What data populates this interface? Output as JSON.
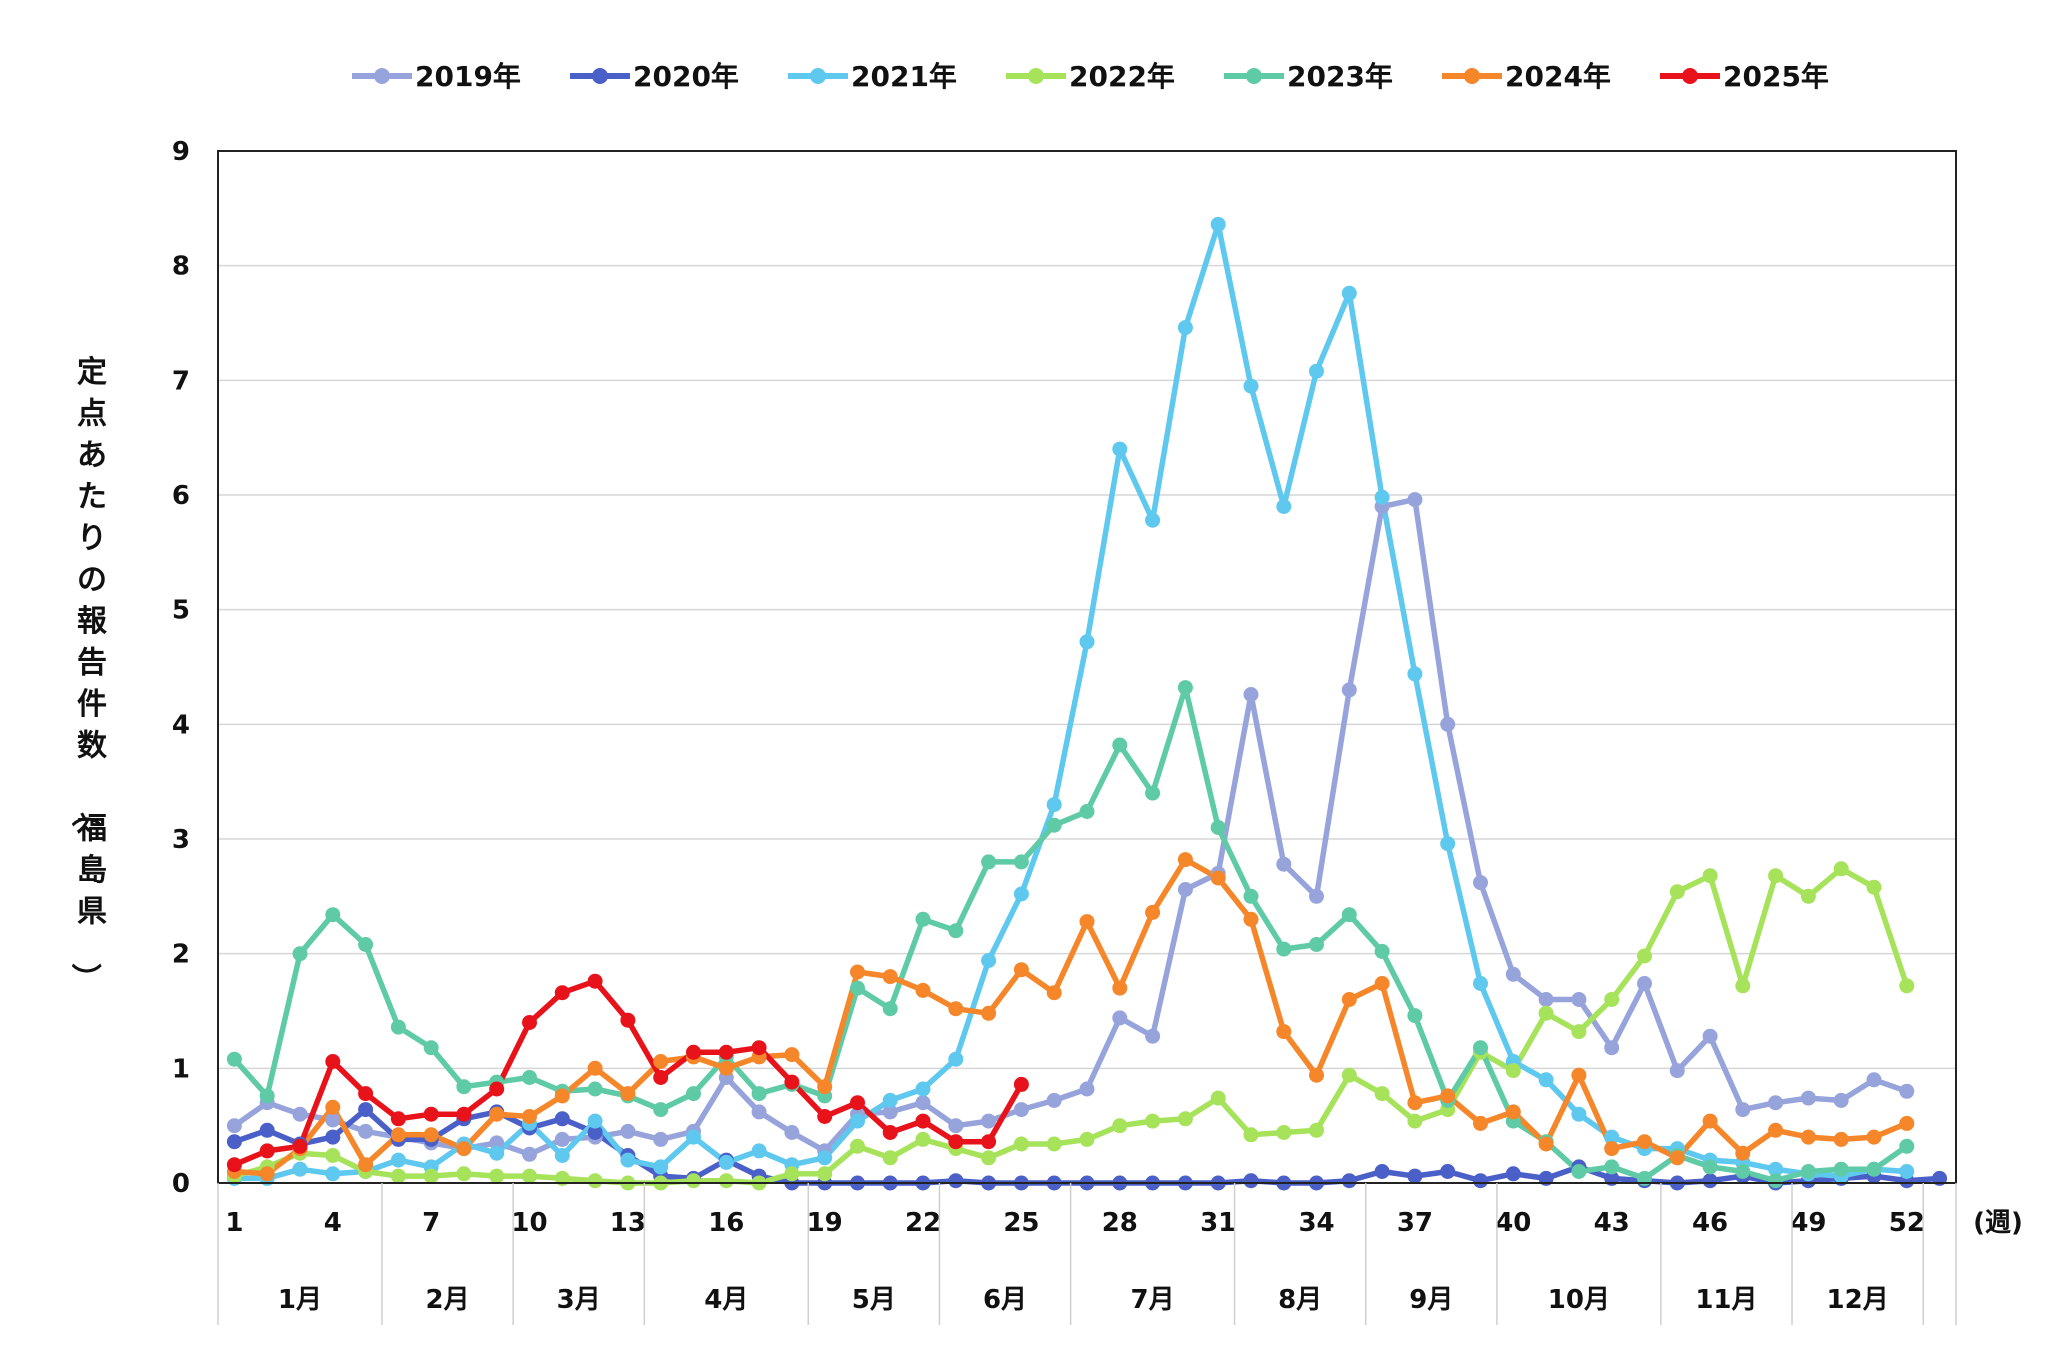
{
  "chart_data": {
    "type": "line",
    "ylabel": "定点あたりの報告件数（福島県）",
    "xunit": "(週)",
    "ylim": [
      0,
      9
    ],
    "yticks": [
      "0",
      "1",
      "2",
      "3",
      "4",
      "5",
      "6",
      "7",
      "8",
      "9"
    ],
    "xticks": [
      "1",
      "4",
      "7",
      "10",
      "13",
      "16",
      "19",
      "22",
      "25",
      "28",
      "31",
      "34",
      "37",
      "40",
      "43",
      "46",
      "49",
      "52"
    ],
    "months": [
      {
        "label": "1月",
        "start": 0.5,
        "end": 5.5
      },
      {
        "label": "2月",
        "start": 5.5,
        "end": 9.5
      },
      {
        "label": "3月",
        "start": 9.5,
        "end": 13.5
      },
      {
        "label": "4月",
        "start": 13.5,
        "end": 18.5
      },
      {
        "label": "5月",
        "start": 18.5,
        "end": 22.5
      },
      {
        "label": "6月",
        "start": 22.5,
        "end": 26.5
      },
      {
        "label": "7月",
        "start": 26.5,
        "end": 31.5
      },
      {
        "label": "8月",
        "start": 31.5,
        "end": 35.5
      },
      {
        "label": "9月",
        "start": 35.5,
        "end": 39.5
      },
      {
        "label": "10月",
        "start": 39.5,
        "end": 44.5
      },
      {
        "label": "11月",
        "start": 44.5,
        "end": 48.5
      },
      {
        "label": "12月",
        "start": 48.5,
        "end": 52.5
      }
    ],
    "grid": true,
    "legend_position": "top",
    "series": [
      {
        "name": "2019年",
        "color": "#97a4dc",
        "values": [
          0.5,
          0.7,
          0.6,
          0.55,
          0.45,
          0.4,
          0.35,
          0.3,
          0.35,
          0.25,
          0.38,
          0.4,
          0.45,
          0.38,
          0.45,
          0.92,
          0.62,
          0.44,
          0.28,
          0.6,
          0.62,
          0.7,
          0.5,
          0.54,
          0.64,
          0.72,
          0.82,
          1.44,
          1.28,
          2.56,
          2.7,
          4.26,
          2.78,
          2.5,
          4.3,
          5.9,
          5.96,
          4.0,
          2.62,
          1.82,
          1.6,
          1.6,
          1.18,
          1.74,
          0.98,
          1.28,
          0.64,
          0.7,
          0.74,
          0.72,
          0.9,
          0.8
        ]
      },
      {
        "name": "2020年",
        "color": "#4a5fc8",
        "values": [
          0.36,
          0.46,
          0.34,
          0.4,
          0.64,
          0.38,
          0.38,
          0.56,
          0.62,
          0.48,
          0.56,
          0.44,
          0.24,
          0.06,
          0.04,
          0.2,
          0.06,
          0.0,
          0.0,
          0.0,
          0.0,
          0.0,
          0.02,
          0.0,
          0.0,
          0.0,
          0.0,
          0.0,
          0.0,
          0.0,
          0.0,
          0.02,
          0.0,
          0.0,
          0.02,
          0.1,
          0.06,
          0.1,
          0.02,
          0.08,
          0.04,
          0.14,
          0.04,
          0.02,
          0.0,
          0.02,
          0.06,
          0.0,
          0.02,
          0.04,
          0.06,
          0.02,
          0.04
        ]
      },
      {
        "name": "2021年",
        "color": "#5ec8ee",
        "values": [
          0.04,
          0.04,
          0.12,
          0.08,
          0.1,
          0.2,
          0.14,
          0.34,
          0.26,
          0.52,
          0.24,
          0.54,
          0.2,
          0.14,
          0.4,
          0.18,
          0.28,
          0.16,
          0.22,
          0.54,
          0.72,
          0.82,
          1.08,
          1.94,
          2.52,
          3.3,
          4.72,
          6.4,
          5.78,
          7.46,
          8.36,
          6.95,
          5.9,
          7.08,
          7.76,
          5.98,
          4.44,
          2.96,
          1.74,
          1.06,
          0.9,
          0.6,
          0.4,
          0.3,
          0.3,
          0.2,
          0.18,
          0.12,
          0.08,
          0.06,
          0.12,
          0.1
        ]
      },
      {
        "name": "2022年",
        "color": "#a6e25a",
        "values": [
          0.06,
          0.14,
          0.26,
          0.24,
          0.1,
          0.06,
          0.06,
          0.08,
          0.06,
          0.06,
          0.04,
          0.02,
          0.0,
          0.0,
          0.02,
          0.02,
          0.0,
          0.08,
          0.08,
          0.32,
          0.22,
          0.38,
          0.3,
          0.22,
          0.34,
          0.34,
          0.38,
          0.5,
          0.54,
          0.56,
          0.74,
          0.42,
          0.44,
          0.46,
          0.94,
          0.78,
          0.54,
          0.64,
          1.14,
          0.98,
          1.48,
          1.32,
          1.6,
          1.98,
          2.54,
          2.68,
          1.72,
          2.68,
          2.5,
          2.74,
          2.58,
          1.72
        ]
      },
      {
        "name": "2023年",
        "color": "#5fcaa6",
        "values": [
          1.08,
          0.76,
          2.0,
          2.34,
          2.08,
          1.36,
          1.18,
          0.84,
          0.88,
          0.92,
          0.8,
          0.82,
          0.76,
          0.64,
          0.78,
          1.1,
          0.78,
          0.86,
          0.76,
          1.7,
          1.52,
          2.3,
          2.2,
          2.8,
          2.8,
          3.12,
          3.24,
          3.82,
          3.4,
          4.32,
          3.1,
          2.5,
          2.04,
          2.08,
          2.34,
          2.02,
          1.46,
          0.72,
          1.18,
          0.54,
          0.36,
          0.1,
          0.14,
          0.04,
          0.24,
          0.14,
          0.1,
          0.02,
          0.1,
          0.12,
          0.12,
          0.32
        ]
      },
      {
        "name": "2024年",
        "color": "#f5862a",
        "values": [
          0.1,
          0.08,
          0.3,
          0.66,
          0.16,
          0.42,
          0.42,
          0.3,
          0.6,
          0.58,
          0.76,
          1.0,
          0.78,
          1.06,
          1.1,
          1.0,
          1.1,
          1.12,
          0.84,
          1.84,
          1.8,
          1.68,
          1.52,
          1.48,
          1.86,
          1.66,
          2.28,
          1.7,
          2.36,
          2.82,
          2.66,
          2.3,
          1.32,
          0.94,
          1.6,
          1.74,
          0.7,
          0.76,
          0.52,
          0.62,
          0.34,
          0.94,
          0.3,
          0.36,
          0.22,
          0.54,
          0.26,
          0.46,
          0.4,
          0.38,
          0.4,
          0.52
        ]
      },
      {
        "name": "2025年",
        "color": "#e8121a",
        "values": [
          0.16,
          0.28,
          0.32,
          1.06,
          0.78,
          0.56,
          0.6,
          0.6,
          0.82,
          1.4,
          1.66,
          1.76,
          1.42,
          0.92,
          1.14,
          1.14,
          1.18,
          0.88,
          0.58,
          0.7,
          0.44,
          0.54,
          0.36,
          0.36,
          0.86
        ]
      }
    ]
  }
}
